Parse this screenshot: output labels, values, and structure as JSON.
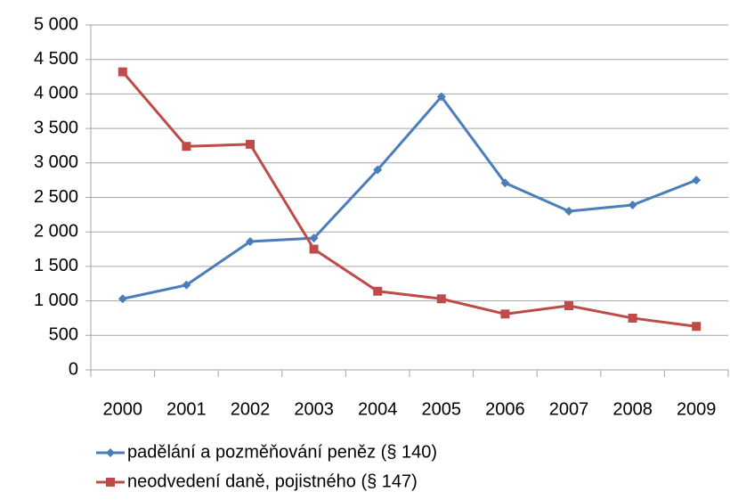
{
  "chart_data": {
    "type": "line",
    "categories": [
      "2000",
      "2001",
      "2002",
      "2003",
      "2004",
      "2005",
      "2006",
      "2007",
      "2008",
      "2009"
    ],
    "series": [
      {
        "name": "padělání a pozměňování peněz (§ 140)",
        "color": "#4a7ebb",
        "marker": "diamond",
        "values": [
          1030,
          1230,
          1860,
          1910,
          2900,
          3960,
          2710,
          2300,
          2390,
          2750
        ]
      },
      {
        "name": "neodvedení daně, pojistného (§ 147)",
        "color": "#be4b48",
        "marker": "square",
        "values": [
          4320,
          3240,
          3270,
          1750,
          1140,
          1030,
          810,
          930,
          750,
          630
        ]
      }
    ],
    "ylim": [
      0,
      5000
    ],
    "yticks": [
      0,
      500,
      {
        "value": 1000,
        "label": "1 000"
      },
      {
        "value": 1500,
        "label": "1 500"
      },
      {
        "value": 2000,
        "label": "2 000"
      },
      {
        "value": 2500,
        "label": "2 500"
      },
      {
        "value": 3000,
        "label": "3 000"
      },
      {
        "value": 3500,
        "label": "3 500"
      },
      {
        "value": 4000,
        "label": "4 000"
      },
      {
        "value": 4500,
        "label": "4 500"
      },
      {
        "value": 5000,
        "label": "5 000"
      }
    ],
    "grid": true,
    "legend": "bottom"
  }
}
